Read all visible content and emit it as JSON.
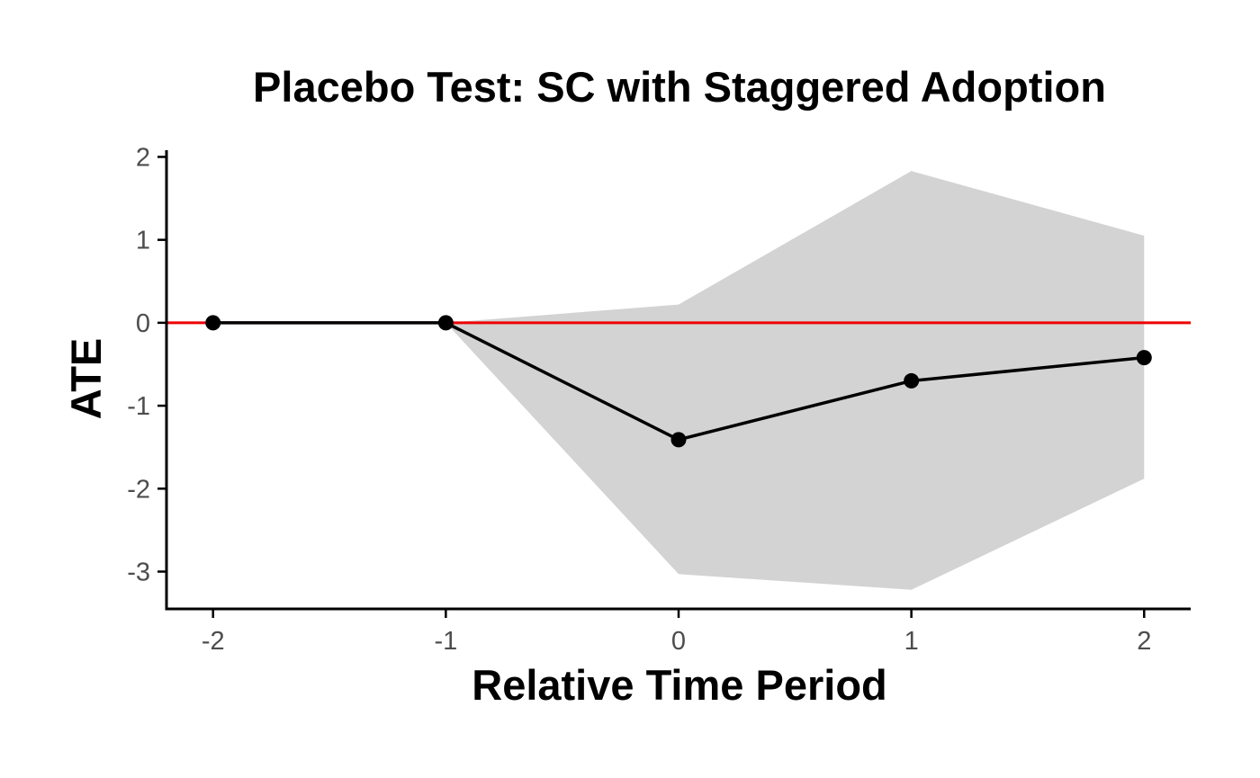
{
  "chart_data": {
    "type": "line",
    "title": "Placebo Test: SC with Staggered Adoption",
    "xlabel": "Relative Time Period",
    "ylabel": "ATE",
    "x": [
      -2,
      -1,
      0,
      1,
      2
    ],
    "x_tick_labels": [
      "-2",
      "-1",
      "0",
      "1",
      "2"
    ],
    "y_tick_labels": [
      "2",
      "1",
      "0",
      "-1",
      "-2",
      "-3"
    ],
    "y_ticks": [
      2,
      1,
      0,
      -1,
      -2,
      -3
    ],
    "xlim": [
      -2.2,
      2.2
    ],
    "ylim": [
      -3.45,
      2.07
    ],
    "series": [
      {
        "name": "ATE",
        "x": [
          -2,
          -1,
          0,
          1,
          2
        ],
        "values": [
          0.0,
          0.0,
          -1.41,
          -0.7,
          -0.42
        ]
      }
    ],
    "confidence_band": {
      "x": [
        -1,
        0,
        1,
        2
      ],
      "lower": [
        0.0,
        -3.03,
        -3.22,
        -1.88
      ],
      "upper": [
        0.0,
        0.22,
        1.83,
        1.05
      ]
    },
    "reference_line": {
      "y": 0,
      "color": "#ee0000"
    },
    "colors": {
      "series": "#000000",
      "band": "#d3d3d3",
      "reference": "#ee0000",
      "axis": "#000000",
      "tick_label": "#4d4d4d"
    },
    "grid": false,
    "legend": "none"
  }
}
